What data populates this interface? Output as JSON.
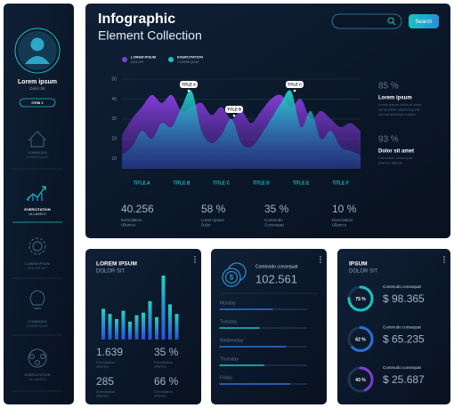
{
  "sidebar": {
    "name": "Lorem ipsum",
    "subtitle": "Dolor Sit",
    "button": "ITEM 1",
    "nav": [
      {
        "title": "COMMODO",
        "subtitle": "CONSEQUAT"
      },
      {
        "title": "EXERCITATION",
        "subtitle": "ULLAMCO"
      },
      {
        "title": "LOREM IPSUM",
        "subtitle": "DOLOR SIT"
      },
      {
        "title": "COMMODO",
        "subtitle": "CONSEQUAT"
      },
      {
        "title": "EXERCITATION",
        "subtitle": "ULLAMCO"
      }
    ]
  },
  "header": {
    "title": "Infographic",
    "subtitle": "Element Collection",
    "search_button": "Search"
  },
  "area_chart": {
    "type": "area",
    "series": [
      {
        "name": "LOREM IPSUM",
        "name_sub": "DOLOR",
        "color": "#7b3fd0",
        "values": [
          22,
          30,
          36,
          42,
          38,
          42,
          34,
          36,
          38,
          32,
          36,
          30,
          34,
          28,
          34,
          40,
          42,
          36,
          40,
          30,
          34,
          30,
          26,
          28,
          24
        ]
      },
      {
        "name": "EXERCITATION",
        "name_sub": "CONSEQUAT",
        "color": "#19c3c0",
        "values": [
          12,
          16,
          24,
          20,
          28,
          26,
          36,
          44,
          24,
          18,
          22,
          30,
          18,
          16,
          22,
          30,
          38,
          44,
          26,
          34,
          20,
          24,
          16,
          14,
          12
        ]
      }
    ],
    "categories": [
      null,
      null,
      "TITLE A",
      null,
      null,
      null,
      "TITLE B",
      null,
      null,
      null,
      "TITLE C",
      null,
      null,
      null,
      "TITLE D",
      null,
      null,
      null,
      "TITLE E",
      null,
      null,
      null,
      "TITLE F",
      null,
      null
    ],
    "ylim": [
      5,
      50
    ],
    "yticks": [
      10,
      20,
      30,
      40,
      50
    ],
    "grid": true,
    "annotations": [
      "TITLE A",
      "TITLE B",
      "TITLE C"
    ]
  },
  "stats": [
    {
      "value": "40.256",
      "label": "Exercitation",
      "sub": "Ullamco"
    },
    {
      "value": "58 %",
      "label": "Lorem ipsum",
      "sub": "Dolor"
    },
    {
      "value": "35 %",
      "label": "Commodo",
      "sub": "Consequat"
    },
    {
      "value": "10 %",
      "label": "Exercitation",
      "sub": "Ullamco"
    }
  ],
  "side_stats": [
    {
      "value": "85 %",
      "title": "Lorem ipsum",
      "lines": [
        "Lorem ipsum dolor sit amet,",
        "consectetur adipiscing elit,",
        "sed do eiusmod tempor"
      ]
    },
    {
      "value": "93 %",
      "title": "Dolor sit amet",
      "lines": [
        "Commodo consequat",
        "ullamco laboris"
      ]
    }
  ],
  "bar_card": {
    "title": "LOREM IPSUM",
    "subtitle": "DOLOR SIT",
    "chart": {
      "type": "bar",
      "values": [
        48,
        40,
        32,
        45,
        28,
        38,
        42,
        60,
        35,
        100,
        55,
        40
      ],
      "ylim": [
        0,
        100
      ],
      "color": "#19c3c0"
    },
    "stats": [
      {
        "value": "1.639",
        "label": "Exercitation",
        "sub": "ullamco"
      },
      {
        "value": "35 %",
        "label": "Exercitation",
        "sub": "ullamco"
      },
      {
        "value": "285",
        "label": "Exercitation",
        "sub": "ullamco"
      },
      {
        "value": "66 %",
        "label": "Exercitation",
        "sub": "ullamco"
      }
    ]
  },
  "progress_card": {
    "title": "Commodo consequat",
    "value": "102.561",
    "chart": {
      "type": "progress",
      "categories": [
        "Monday",
        "Tuesday",
        "Wednesday",
        "Thursday",
        "Friday"
      ],
      "values": [
        60,
        45,
        75,
        50,
        80
      ],
      "xlim": [
        0,
        100
      ],
      "colors": [
        "#2a6fd6",
        "#19c3c0",
        "#2a6fd6",
        "#19c3c0",
        "#2a6fd6"
      ]
    }
  },
  "gauge_card": {
    "title": "IPSUM",
    "subtitle": "DOLOR SIT",
    "items": [
      {
        "percent": 75,
        "percent_label": "75 %",
        "label": "Commodo consequat",
        "value": "$ 98.365"
      },
      {
        "percent": 62,
        "percent_label": "62 %",
        "label": "Commodo consequat",
        "value": "$ 65.235"
      },
      {
        "percent": 43,
        "percent_label": "43 %",
        "label": "Commodo consequat",
        "value": "$ 25.687"
      }
    ]
  }
}
